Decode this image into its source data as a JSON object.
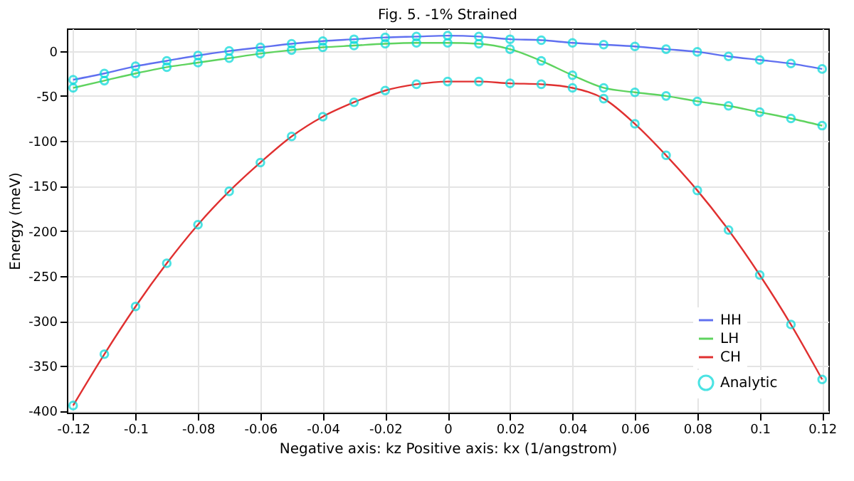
{
  "chart_data": {
    "type": "line",
    "title": "Fig. 5. -1% Strained",
    "xlabel": "Negative axis: kz    Positive axis: kx   (1/angstrom)",
    "ylabel": "Energy (meV)",
    "x": [
      -0.12,
      -0.11,
      -0.1,
      -0.09,
      -0.08,
      -0.07,
      -0.06,
      -0.05,
      -0.04,
      -0.03,
      -0.02,
      -0.01,
      0,
      0.01,
      0.02,
      0.03,
      0.04,
      0.05,
      0.06,
      0.07,
      0.08,
      0.09,
      0.1,
      0.11,
      0.12
    ],
    "series": [
      {
        "name": "HH",
        "color": "#6070f0",
        "type": "line",
        "values": [
          -32,
          -25,
          -17,
          -11,
          -5,
          0,
          4,
          8,
          11,
          13,
          15,
          16,
          17,
          16,
          13,
          12,
          9,
          7,
          5,
          2,
          -1,
          -6,
          -10,
          -14,
          -20
        ]
      },
      {
        "name": "LH",
        "color": "#5fd35f",
        "type": "line",
        "values": [
          -41,
          -33,
          -25,
          -18,
          -13,
          -8,
          -3,
          1,
          4,
          6,
          8,
          9,
          9,
          8,
          2,
          -11,
          -27,
          -41,
          -46,
          -50,
          -56,
          -61,
          -68,
          -75,
          -83
        ]
      },
      {
        "name": "CH",
        "color": "#e03030",
        "type": "line",
        "values": [
          -394,
          -337,
          -284,
          -236,
          -193,
          -156,
          -124,
          -95,
          -73,
          -57,
          -44,
          -37,
          -34,
          -34,
          -36,
          -37,
          -41,
          -53,
          -81,
          -116,
          -155,
          -199,
          -249,
          -304,
          -365
        ]
      },
      {
        "name": "Analytic",
        "color": "#00d8d8",
        "type": "scatter",
        "marker": "circle",
        "x": [
          -0.12,
          -0.11,
          -0.1,
          -0.09,
          -0.08,
          -0.07,
          -0.06,
          -0.05,
          -0.04,
          -0.03,
          -0.02,
          -0.01,
          0,
          0.01,
          0.02,
          0.03,
          0.04,
          0.05,
          0.06,
          0.07,
          0.08,
          0.09,
          0.1,
          0.11,
          0.12,
          -0.12,
          -0.11,
          -0.1,
          -0.09,
          -0.08,
          -0.07,
          -0.06,
          -0.05,
          -0.04,
          -0.03,
          -0.02,
          -0.01,
          0,
          0.01,
          0.02,
          0.03,
          0.04,
          0.05,
          0.06,
          0.07,
          0.08,
          0.09,
          0.1,
          0.11,
          0.12,
          -0.12,
          -0.11,
          -0.1,
          -0.09,
          -0.08,
          -0.07,
          -0.06,
          -0.05,
          -0.04,
          -0.03,
          -0.02,
          -0.01,
          0,
          0.01,
          0.02,
          0.03,
          0.04,
          0.05,
          0.06,
          0.07,
          0.08,
          0.09,
          0.1,
          0.11,
          0.12
        ],
        "values": [
          -32,
          -25,
          -17,
          -11,
          -5,
          0,
          4,
          8,
          11,
          13,
          15,
          16,
          17,
          16,
          13,
          12,
          9,
          7,
          5,
          2,
          -1,
          -6,
          -10,
          -14,
          -20,
          -41,
          -33,
          -25,
          -18,
          -13,
          -8,
          -3,
          1,
          4,
          6,
          8,
          9,
          9,
          8,
          2,
          -11,
          -27,
          -41,
          -46,
          -50,
          -56,
          -61,
          -68,
          -75,
          -83,
          -394,
          -337,
          -284,
          -236,
          -193,
          -156,
          -124,
          -95,
          -73,
          -57,
          -44,
          -37,
          -34,
          -34,
          -36,
          -37,
          -41,
          -53,
          -81,
          -116,
          -155,
          -199,
          -249,
          -304,
          -365
        ]
      }
    ],
    "xlim": [
      -0.122,
      0.122
    ],
    "xticks": [
      -0.12,
      -0.1,
      -0.08,
      -0.06,
      -0.04,
      -0.02,
      0,
      0.02,
      0.04,
      0.06,
      0.08,
      0.1,
      0.12
    ],
    "ylim": [
      -402,
      25
    ],
    "yticks": [
      -400,
      -350,
      -300,
      -250,
      -200,
      -150,
      -100,
      -50,
      0
    ],
    "grid": true,
    "legend": "bottom right"
  }
}
